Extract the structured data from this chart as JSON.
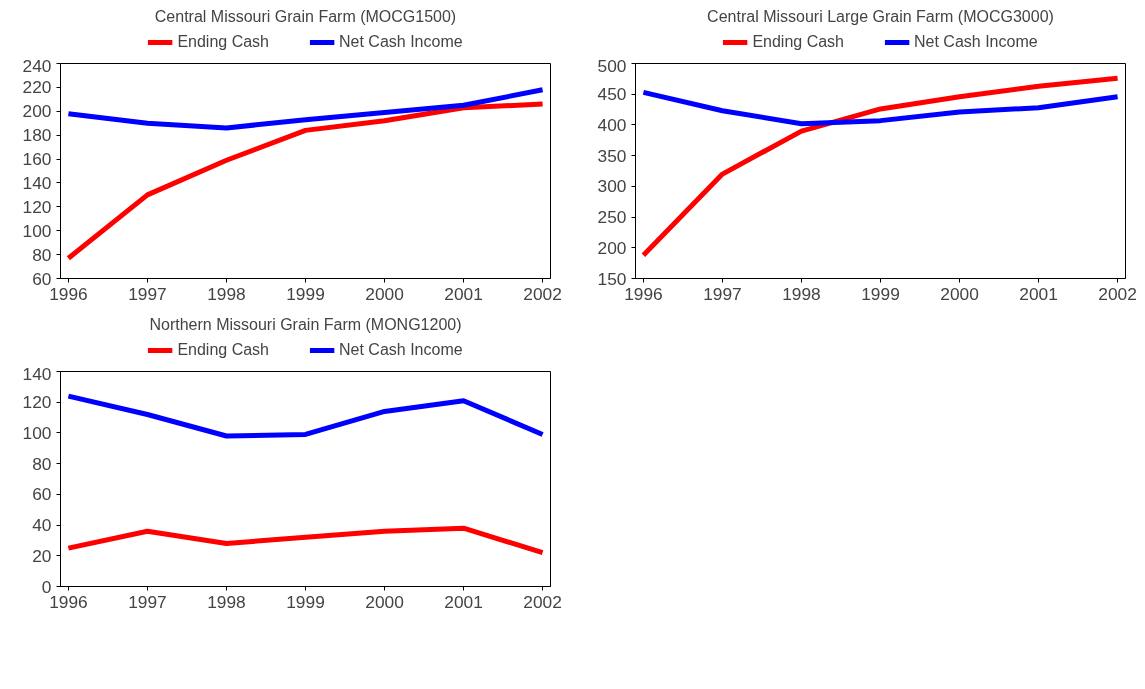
{
  "chart_data": [
    {
      "type": "line",
      "title": "Central Missouri Grain Farm (MOCG1500)",
      "x": [
        1996,
        1997,
        1998,
        1999,
        2000,
        2001,
        2002
      ],
      "xlim": [
        1995.9,
        2002.1
      ],
      "xticks": [
        1996,
        1997,
        1998,
        1999,
        2000,
        2001,
        2002
      ],
      "ylim": [
        60,
        240
      ],
      "yticks": [
        60,
        80,
        100,
        120,
        140,
        160,
        180,
        200,
        220,
        240
      ],
      "grid": false,
      "legend": "top",
      "line_style": "solid",
      "marker": "none",
      "series": [
        {
          "name": "Ending Cash",
          "color": "#ff0000",
          "values": [
            77,
            130,
            159,
            184,
            192,
            203,
            206
          ]
        },
        {
          "name": "Net Cash Income",
          "color": "#0000ff",
          "values": [
            198,
            190,
            186,
            193,
            199,
            205,
            218
          ]
        }
      ]
    },
    {
      "type": "line",
      "title": "Central Missouri Large Grain Farm (MOCG3000)",
      "x": [
        1996,
        1997,
        1998,
        1999,
        2000,
        2001,
        2002
      ],
      "xlim": [
        1995.9,
        2002.1
      ],
      "xticks": [
        1996,
        1997,
        1998,
        1999,
        2000,
        2001,
        2002
      ],
      "ylim": [
        150,
        500
      ],
      "yticks": [
        150,
        200,
        250,
        300,
        350,
        400,
        450,
        500
      ],
      "grid": false,
      "legend": "top",
      "line_style": "solid",
      "marker": "none",
      "series": [
        {
          "name": "Ending Cash",
          "color": "#ff0000",
          "values": [
            188,
            320,
            390,
            426,
            446,
            463,
            476
          ]
        },
        {
          "name": "Net Cash Income",
          "color": "#0000ff",
          "values": [
            453,
            423,
            402,
            407,
            421,
            428,
            446
          ]
        }
      ]
    },
    {
      "type": "line",
      "title": "Northern Missouri Grain Farm (MONG1200)",
      "x": [
        1996,
        1997,
        1998,
        1999,
        2000,
        2001,
        2002
      ],
      "xlim": [
        1995.9,
        2002.1
      ],
      "xticks": [
        1996,
        1997,
        1998,
        1999,
        2000,
        2001,
        2002
      ],
      "ylim": [
        0,
        140
      ],
      "yticks": [
        0,
        20,
        40,
        60,
        80,
        100,
        120,
        140
      ],
      "grid": false,
      "legend": "top",
      "line_style": "solid",
      "marker": "none",
      "series": [
        {
          "name": "Ending Cash",
          "color": "#ff0000",
          "values": [
            25,
            36,
            28,
            32,
            36,
            38,
            22
          ]
        },
        {
          "name": "Net Cash Income",
          "color": "#0000ff",
          "values": [
            124,
            112,
            98,
            99,
            114,
            121,
            99
          ]
        }
      ]
    }
  ]
}
